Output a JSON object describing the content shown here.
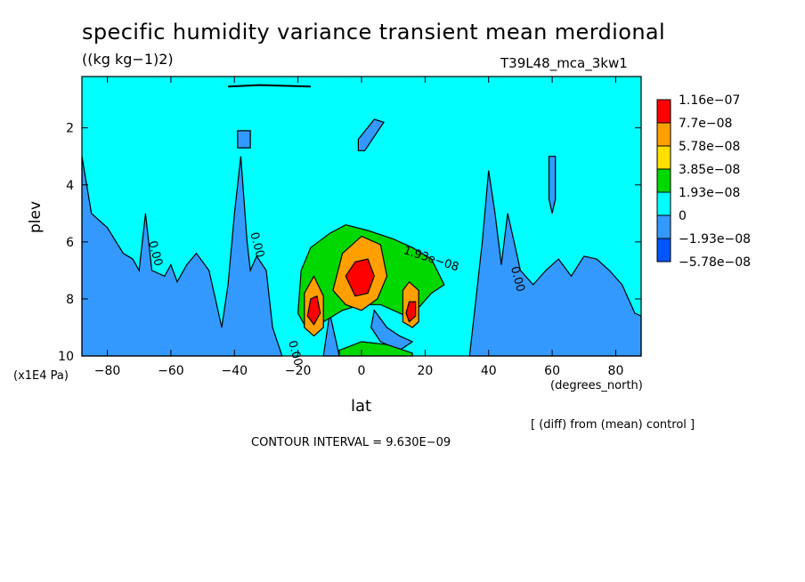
{
  "header": {
    "title": "specific humidity variance transient mean merdional",
    "units": "((kg kg−1)2)",
    "experiment": "T39L48_mca_3kw1"
  },
  "footer": {
    "diff_note": "[ (diff) from (mean) control ]",
    "contour_interval": "CONTOUR INTERVAL = 9.630E−09"
  },
  "chart_data": {
    "type": "contour",
    "title": "specific humidity variance transient mean merdional",
    "xlabel": "lat",
    "ylabel": "plev",
    "x_units": "(degrees_north)",
    "y_units": "(x1E4 Pa)",
    "xlim": [
      -88,
      88
    ],
    "ylim": [
      10,
      0.2
    ],
    "x_ticks": [
      -80,
      -60,
      -40,
      -20,
      0,
      20,
      40,
      60,
      80
    ],
    "x_tick_labels": [
      "−80",
      "−60",
      "−40",
      "−20",
      "0",
      "20",
      "40",
      "60",
      "80"
    ],
    "y_ticks": [
      2,
      4,
      6,
      8,
      10
    ],
    "y_tick_labels": [
      "2",
      "4",
      "6",
      "8",
      "10"
    ],
    "contour_interval": 9.63e-09,
    "legend": {
      "placement": "right",
      "levels": [
        "1.16e−07",
        "7.7e−08",
        "5.78e−08",
        "3.85e−08",
        "1.93e−08",
        "0",
        "−1.93e−08",
        "−5.78e−08"
      ],
      "colors": [
        "#ff0000",
        "#ffa000",
        "#ffe000",
        "#00d800",
        "#00ffff",
        "#3399ff",
        "#0055ff"
      ]
    },
    "contour_labels": [
      {
        "text": "0.00",
        "lat": -67,
        "plev": 6.0
      },
      {
        "text": "0.00",
        "lat": -35,
        "plev": 5.7
      },
      {
        "text": "1.93e−08",
        "lat": 13,
        "plev": 6.4
      },
      {
        "text": "0.00",
        "lat": 47,
        "plev": 6.9
      },
      {
        "text": "0.00",
        "lat": -23,
        "plev": 9.5
      }
    ],
    "regions": [
      {
        "level": "negative",
        "color": "#3399ff",
        "points": [
          [
            -88,
            3
          ],
          [
            -85,
            5
          ],
          [
            -80,
            5.5
          ],
          [
            -75,
            6.4
          ],
          [
            -72,
            6.6
          ],
          [
            -70,
            7
          ],
          [
            -68,
            5
          ],
          [
            -66,
            7
          ],
          [
            -62,
            7.2
          ],
          [
            -60,
            6.8
          ],
          [
            -58,
            7.4
          ],
          [
            -55,
            6.8
          ],
          [
            -52,
            6.4
          ],
          [
            -48,
            7
          ],
          [
            -46,
            8
          ],
          [
            -44,
            9
          ],
          [
            -42,
            7.5
          ],
          [
            -40,
            5
          ],
          [
            -38,
            3
          ],
          [
            -36,
            6
          ],
          [
            -35,
            7
          ],
          [
            -33,
            6.5
          ],
          [
            -30,
            7
          ],
          [
            -28,
            9
          ],
          [
            -25,
            10
          ],
          [
            -88,
            10
          ]
        ]
      },
      {
        "level": "negative",
        "color": "#3399ff",
        "points": [
          [
            34,
            10
          ],
          [
            36,
            8
          ],
          [
            38,
            6
          ],
          [
            40,
            3.5
          ],
          [
            42,
            5
          ],
          [
            44,
            6.8
          ],
          [
            46,
            5
          ],
          [
            48,
            6
          ],
          [
            50,
            7
          ],
          [
            54,
            7.5
          ],
          [
            58,
            7
          ],
          [
            62,
            6.6
          ],
          [
            66,
            7.2
          ],
          [
            70,
            6.5
          ],
          [
            74,
            6.6
          ],
          [
            78,
            7
          ],
          [
            82,
            7.5
          ],
          [
            86,
            8.5
          ],
          [
            88,
            8.6
          ],
          [
            88,
            10
          ]
        ]
      },
      {
        "level": "negative",
        "color": "#3399ff",
        "points": [
          [
            -39,
            2.1
          ],
          [
            -35,
            2.1
          ],
          [
            -35,
            2.7
          ],
          [
            -39,
            2.7
          ]
        ]
      },
      {
        "level": "negative",
        "color": "#3399ff",
        "points": [
          [
            -1,
            2.4
          ],
          [
            4,
            1.7
          ],
          [
            7,
            1.8
          ],
          [
            4,
            2.3
          ],
          [
            1,
            2.8
          ],
          [
            -1,
            2.8
          ]
        ]
      },
      {
        "level": "negative",
        "color": "#3399ff",
        "points": [
          [
            59,
            3
          ],
          [
            61,
            3
          ],
          [
            61,
            4.5
          ],
          [
            60,
            5
          ],
          [
            59,
            4.5
          ]
        ]
      },
      {
        "level": "negative",
        "color": "#3399ff",
        "points": [
          [
            -10,
            8.5
          ],
          [
            -8,
            9.5
          ],
          [
            -7,
            10
          ],
          [
            -12,
            10
          ]
        ]
      },
      {
        "level": "negative",
        "color": "#3399ff",
        "points": [
          [
            4,
            8.4
          ],
          [
            8,
            9
          ],
          [
            12,
            9.3
          ],
          [
            16,
            9.5
          ],
          [
            12,
            9.8
          ],
          [
            6,
            9.5
          ],
          [
            3,
            9
          ]
        ]
      },
      {
        "level": "positive",
        "color": "#00d800",
        "points": [
          [
            -20,
            8.5
          ],
          [
            -19,
            7
          ],
          [
            -16,
            6.2
          ],
          [
            -10,
            5.7
          ],
          [
            -5,
            5.4
          ],
          [
            2,
            5.6
          ],
          [
            10,
            5.9
          ],
          [
            16,
            6.2
          ],
          [
            22,
            6.6
          ],
          [
            26,
            7.5
          ],
          [
            22,
            7.8
          ],
          [
            18,
            8.3
          ],
          [
            14,
            8.6
          ],
          [
            6,
            8.2
          ],
          [
            0,
            8.2
          ],
          [
            -6,
            8.4
          ],
          [
            -12,
            8.8
          ],
          [
            -17,
            9.1
          ]
        ]
      },
      {
        "level": "positive",
        "color": "#00d800",
        "points": [
          [
            -7,
            9.8
          ],
          [
            0,
            9.5
          ],
          [
            8,
            9.6
          ],
          [
            16,
            9.9
          ],
          [
            16,
            10
          ],
          [
            -7,
            10
          ]
        ]
      },
      {
        "level": "strong",
        "color": "#ffa000",
        "points": [
          [
            -18,
            9
          ],
          [
            -18,
            7.8
          ],
          [
            -15,
            7.2
          ],
          [
            -12,
            7.9
          ],
          [
            -12,
            9
          ],
          [
            -15,
            9.3
          ]
        ]
      },
      {
        "level": "strong",
        "color": "#ffa000",
        "points": [
          [
            -9,
            7.7
          ],
          [
            -6,
            6.4
          ],
          [
            0,
            5.8
          ],
          [
            6,
            6.1
          ],
          [
            8,
            7.2
          ],
          [
            5,
            8
          ],
          [
            0,
            8.4
          ],
          [
            -5,
            8.2
          ]
        ]
      },
      {
        "level": "strong",
        "color": "#ffa000",
        "points": [
          [
            13,
            8.8
          ],
          [
            13,
            7.7
          ],
          [
            15,
            7.4
          ],
          [
            18,
            7.7
          ],
          [
            18,
            8.8
          ],
          [
            16,
            9
          ]
        ]
      },
      {
        "level": "peak",
        "color": "#ff0000",
        "points": [
          [
            -5,
            7.2
          ],
          [
            -2,
            6.7
          ],
          [
            2,
            6.6
          ],
          [
            4,
            7.2
          ],
          [
            2,
            7.8
          ],
          [
            -2,
            7.9
          ]
        ]
      },
      {
        "level": "peak",
        "color": "#ff0000",
        "points": [
          [
            -17,
            8.6
          ],
          [
            -16,
            8
          ],
          [
            -14,
            7.9
          ],
          [
            -13,
            8.5
          ],
          [
            -15,
            8.9
          ]
        ]
      },
      {
        "level": "peak",
        "color": "#ff0000",
        "points": [
          [
            14,
            8.5
          ],
          [
            15,
            8.1
          ],
          [
            17,
            8.1
          ],
          [
            17,
            8.6
          ],
          [
            15,
            8.8
          ]
        ]
      }
    ]
  }
}
